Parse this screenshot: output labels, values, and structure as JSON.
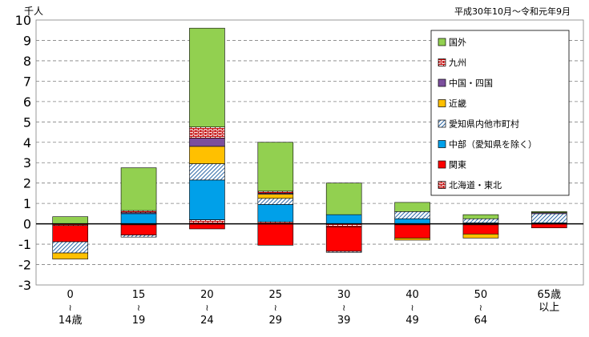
{
  "chart_data": {
    "type": "bar",
    "stacked": true,
    "unit_label": "千人",
    "period_note": "平成30年10月～令和元年9月",
    "ylim": [
      -3,
      10
    ],
    "yticks": [
      -3,
      -2,
      -1,
      0,
      1,
      2,
      3,
      4,
      5,
      6,
      7,
      8,
      9,
      10
    ],
    "grid": true,
    "legend_position": "top-right",
    "categories": [
      [
        "0",
        "≀",
        "14歳"
      ],
      [
        "15",
        "≀",
        "19"
      ],
      [
        "20",
        "≀",
        "24"
      ],
      [
        "25",
        "≀",
        "29"
      ],
      [
        "30",
        "≀",
        "39"
      ],
      [
        "40",
        "≀",
        "49"
      ],
      [
        "50",
        "≀",
        "64"
      ],
      [
        "65歳",
        "以上"
      ]
    ],
    "series": [
      {
        "name": "北海道・東北",
        "color": "#ffffff",
        "pattern": "brick-red",
        "values": [
          -0.08,
          -0.05,
          0.2,
          0.1,
          -0.15,
          -0.05,
          -0.05,
          0.0
        ]
      },
      {
        "name": "関東",
        "color": "#ff0000",
        "pattern": "solid",
        "values": [
          -0.8,
          -0.5,
          -0.25,
          -1.05,
          -1.2,
          -0.65,
          -0.45,
          -0.2
        ]
      },
      {
        "name": "中部（愛知県を除く）",
        "color": "#00a0e9",
        "pattern": "solid",
        "values": [
          0.0,
          0.5,
          1.95,
          0.85,
          0.45,
          0.25,
          0.05,
          0.05
        ]
      },
      {
        "name": "愛知県内他市町村",
        "color": "#ffffff",
        "pattern": "diag-blue",
        "values": [
          -0.55,
          -0.1,
          0.8,
          0.3,
          -0.05,
          0.35,
          0.2,
          0.45
        ]
      },
      {
        "name": "近畿",
        "color": "#ffc000",
        "pattern": "solid",
        "values": [
          -0.3,
          0.0,
          0.85,
          0.2,
          0.0,
          -0.1,
          -0.2,
          0.0
        ]
      },
      {
        "name": "中国・四国",
        "color": "#7b4f9d",
        "pattern": "solid",
        "values": [
          0.0,
          0.05,
          0.4,
          0.05,
          0.0,
          0.0,
          0.0,
          0.05
        ]
      },
      {
        "name": "九州",
        "color": "#ffffff",
        "pattern": "brick-red",
        "values": [
          0.0,
          0.1,
          0.55,
          0.1,
          0.0,
          0.0,
          0.0,
          0.0
        ]
      },
      {
        "name": "国外",
        "color": "#92d050",
        "pattern": "solid",
        "values": [
          0.35,
          2.1,
          4.85,
          2.4,
          1.55,
          0.45,
          0.2,
          0.05
        ]
      }
    ],
    "legend_order": [
      "国外",
      "九州",
      "中国・四国",
      "近畿",
      "愛知県内他市町村",
      "中部（愛知県を除く）",
      "関東",
      "北海道・東北"
    ]
  }
}
